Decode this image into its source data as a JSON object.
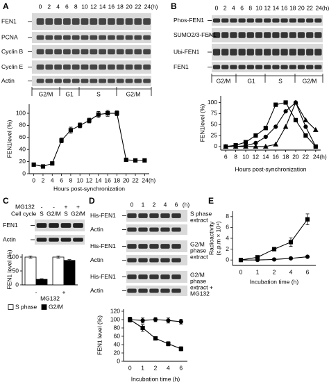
{
  "panels": [
    "A",
    "B",
    "C",
    "D",
    "E"
  ],
  "blots": {
    "A": {
      "lanes": [
        "0",
        "2",
        "4",
        "6",
        "8",
        "10",
        "12",
        "14",
        "16",
        "18",
        "20",
        "22",
        "24(h)"
      ],
      "rows": [
        "FEN1",
        "PCNA",
        "Cyclin B",
        "Cyclin E",
        "Actin"
      ],
      "phases": [
        "G2/M",
        "G1",
        "S",
        "G2/M"
      ]
    },
    "B": {
      "lanes": [
        "0",
        "2",
        "4",
        "6",
        "8",
        "10",
        "12",
        "14",
        "16",
        "18",
        "20",
        "22",
        "24(h)"
      ],
      "rows": [
        "Phos-FEN1",
        "SUMO2/3-FEN1",
        "Ubi-FEN1",
        "FEN1"
      ],
      "phases": [
        "G2/M",
        "G1",
        "S",
        "G2/M"
      ]
    },
    "C": {
      "treatment_label": "MG132",
      "treatments": [
        "-",
        "-",
        "+",
        "+"
      ],
      "cell_cycle_label": "Cell cycle",
      "lanes": [
        "S",
        "G2/M",
        "S",
        "G2/M"
      ],
      "rows": [
        "FEN1",
        "Actin"
      ]
    },
    "D": {
      "lanes": [
        "0",
        "1",
        "2",
        "4",
        "6",
        "(h)"
      ],
      "groups": [
        {
          "rows": [
            "His-FEN1",
            "Actin"
          ],
          "label": [
            "S phase",
            "extract"
          ]
        },
        {
          "rows": [
            "His-FEN1",
            "Actin"
          ],
          "label": [
            "G2/M",
            "phase",
            "extract"
          ]
        },
        {
          "rows": [
            "His-FEN1",
            "Actin"
          ],
          "label": [
            "G2/M",
            "phase",
            "extract +",
            "MG132"
          ]
        }
      ]
    }
  },
  "chart_data": [
    {
      "type": "line",
      "xlabel": "Hours post-synchronization",
      "ylabel": "FEN1level (%)",
      "x": [
        0,
        2,
        4,
        6,
        8,
        10,
        12,
        14,
        16,
        18,
        20,
        22,
        24
      ],
      "xlim": [
        -1,
        25
      ],
      "xticks": [
        0,
        2,
        4,
        6,
        8,
        10,
        12,
        14,
        16,
        18,
        20,
        22,
        {
          "value": 24,
          "label": "24(h)"
        }
      ],
      "ylim": [
        0,
        115
      ],
      "yticks": [
        0,
        20,
        40,
        60,
        80,
        100
      ],
      "series": [
        {
          "color": "#000000",
          "marker": "square",
          "values": [
            15,
            12,
            17,
            55,
            72,
            80,
            88,
            98,
            100,
            100,
            23,
            22,
            22
          ],
          "errors": [
            1,
            1,
            2,
            4,
            5,
            4,
            4,
            5,
            5,
            4,
            2,
            2,
            2
          ]
        }
      ]
    },
    {
      "type": "line",
      "xlabel": "Hours post-synchronization",
      "ylabel": "FEN1level (%)",
      "x": [
        6,
        8,
        10,
        12,
        14,
        16,
        18,
        20,
        22,
        24
      ],
      "xlim": [
        5,
        25
      ],
      "xticks": [
        6,
        8,
        10,
        12,
        14,
        16,
        18,
        20,
        22,
        {
          "value": 24,
          "label": "24(h)"
        }
      ],
      "ylim": [
        -8,
        115
      ],
      "yticks": [
        0,
        25,
        50,
        75,
        100
      ],
      "series": [
        {
          "color": "#000000",
          "marker": "square",
          "values": [
            0,
            3,
            10,
            25,
            42,
            95,
            100,
            60,
            25,
            0
          ]
        },
        {
          "color": "#000000",
          "marker": "circle",
          "values": [
            0,
            0,
            2,
            8,
            22,
            45,
            80,
            100,
            45,
            0
          ]
        },
        {
          "color": "#000000",
          "marker": "triangle",
          "values": [
            0,
            0,
            0,
            0,
            0,
            5,
            45,
            100,
            60,
            38
          ]
        }
      ]
    },
    {
      "type": "bar",
      "xlabel": "MG132",
      "ylabel": "FEN1 level (%)",
      "categories": [
        "-",
        "+"
      ],
      "ylim": [
        0,
        110
      ],
      "yticks": [
        0,
        50,
        100
      ],
      "series": [
        {
          "name": "S phase",
          "color": "#ffffff",
          "values": [
            100,
            100
          ],
          "errors": [
            4,
            4
          ]
        },
        {
          "name": "G2/M",
          "color": "#000000",
          "values": [
            20,
            88
          ],
          "errors": [
            2,
            3
          ]
        }
      ]
    },
    {
      "type": "line",
      "xlabel": "Incubation time (h)",
      "ylabel": "FEN1 level (%)",
      "categories": [
        "0",
        "1",
        "2",
        "4",
        "6"
      ],
      "ylim": [
        0,
        125
      ],
      "yticks": [
        0,
        20,
        40,
        60,
        80,
        100,
        120
      ],
      "series": [
        {
          "color": "#000000",
          "marker": "circle",
          "values": [
            100,
            98,
            100,
            98,
            95
          ],
          "errors": [
            6,
            6,
            5,
            6,
            6
          ]
        },
        {
          "color": "#000000",
          "marker": "square",
          "values": [
            100,
            80,
            55,
            42,
            30
          ],
          "errors": [
            6,
            8,
            4,
            5,
            5
          ]
        }
      ]
    },
    {
      "type": "line",
      "xlabel": "Incubation time (h)",
      "ylabel": [
        "Radioactivity",
        "(c.p.m × 10⁴)"
      ],
      "categories": [
        "0",
        "1",
        "2",
        "4",
        "6"
      ],
      "ylim": [
        -1,
        9
      ],
      "yticks": [
        0,
        2,
        4,
        6,
        8
      ],
      "series": [
        {
          "color": "#000000",
          "marker": "square",
          "values": [
            0,
            0.5,
            2,
            3.3,
            7.5
          ],
          "errors": [
            0.2,
            0.3,
            0.3,
            0.8,
            1
          ]
        },
        {
          "color": "#000000",
          "marker": "circle",
          "values": [
            0,
            0,
            0.1,
            0.3,
            0.6
          ],
          "errors": [
            0.1,
            0.1,
            0.1,
            0.1,
            0.1
          ]
        }
      ]
    }
  ]
}
